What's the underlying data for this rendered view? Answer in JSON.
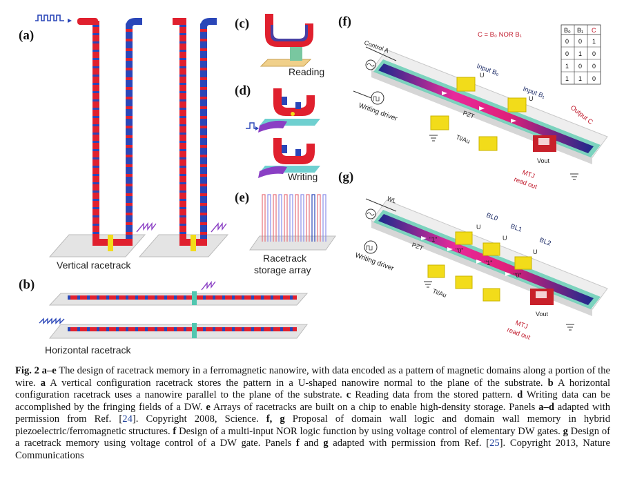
{
  "figure": {
    "panels": {
      "a": "(a)",
      "b": "(b)",
      "c": "(c)",
      "d": "(d)",
      "e": "(e)",
      "f": "(f)",
      "g": "(g)"
    },
    "labels": {
      "vertical": "Vertical racetrack",
      "horizontal": "Horizontal racetrack",
      "reading": "Reading",
      "writing": "Writing",
      "storage_line1": "Racetrack",
      "storage_line2": "storage array"
    },
    "panel_f": {
      "equation": "C = B₀ NOR B₁",
      "control": "Control A",
      "input_b0": "Input B₀",
      "input_b1": "Input B₁",
      "output": "Output C",
      "writing_driver": "Writing driver",
      "pzt": "PZT",
      "tiau": "Ti/Au",
      "vout": "Vout",
      "mtj1": "MTJ",
      "mtj2": "read out",
      "u": "U",
      "truth_table": {
        "headers": [
          "B₀",
          "B₁",
          "C"
        ],
        "rows": [
          [
            "0",
            "0",
            "1"
          ],
          [
            "0",
            "1",
            "0"
          ],
          [
            "1",
            "0",
            "0"
          ],
          [
            "1",
            "1",
            "0"
          ]
        ]
      }
    },
    "panel_g": {
      "wl": "WL",
      "bl0": "BL0",
      "bl1": "BL1",
      "bl2": "BL2",
      "writing_driver": "Writing driver",
      "pzt": "PZT",
      "tiau": "Ti/Au",
      "vout": "Vout",
      "mtj1": "MTJ",
      "mtj2": "read out",
      "u": "U",
      "bits": [
        "\"1\"",
        "\"0\"",
        "\"1\"",
        "\"0\""
      ]
    }
  },
  "caption": {
    "fig": "Fig. 2",
    "ae": "a–e",
    "t1": " The design of racetrack memory in a ferromagnetic nanowire, with data encoded as a pattern of magnetic domains along a portion of the wire. ",
    "a": "a",
    "t2": " A vertical configuration racetrack stores the pattern in a U-shaped nanowire normal to the plane of the substrate. ",
    "b": "b",
    "t3": " A horizontal configuration racetrack uses a nanowire parallel to the plane of the substrate. ",
    "c": "c",
    "t4": " Reading data from the stored pattern. ",
    "d": "d",
    "t5": " Writing data can be accomplished by the fringing fields of a DW. ",
    "e": "e",
    "t6": " Arrays of racetracks are built on a chip to enable high-density storage. Panels ",
    "ad": "a–d",
    "t7": " adapted with permission from Ref. [",
    "ref1": "24",
    "t8": "]. Copyright 2008, Science. ",
    "fg": "f, g",
    "t9": " Proposal of domain wall logic and domain wall memory in hybrid piezoelectric/ferromagnetic structures. ",
    "f": "f",
    "t10": " Design of a multi-input NOR logic function by using voltage control of elementary DW gates. ",
    "g": "g",
    "t11": " Design of a racetrack memory using voltage control of a DW gate. Panels ",
    "f2": "f",
    "t12": " and ",
    "g2": "g",
    "t13": " adapted with permission from Ref. [",
    "ref2": "25",
    "t14": "]. Copyright 2013, Nature Communications"
  },
  "colors": {
    "red": "#e0202e",
    "blue": "#2a46b8",
    "navy": "#1c2a8c",
    "teal": "#52c7b0",
    "yellow": "#f2dc1a",
    "purple": "#8a3fc4",
    "gray": "#e2e2e2"
  }
}
